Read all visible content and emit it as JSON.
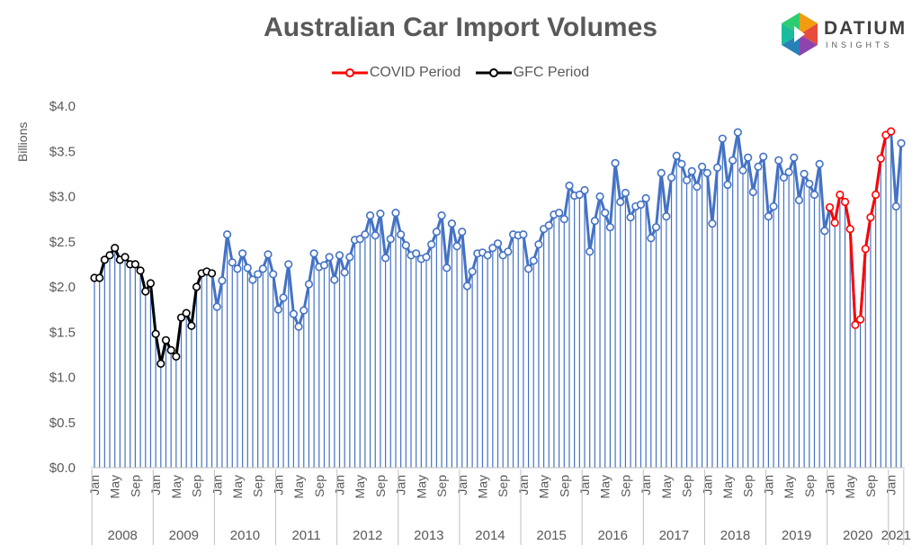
{
  "title": "Australian Car Import Volumes",
  "logo": {
    "name": "DATIUM",
    "sub": "INSIGHTS"
  },
  "legend": [
    {
      "label": "COVID Period",
      "color": "#ff0000"
    },
    {
      "label": "GFC Period",
      "color": "#000000"
    }
  ],
  "chart_data": {
    "type": "line",
    "title": "Australian Car Import Volumes",
    "ylabel": "Billions",
    "ylim": [
      0,
      4
    ],
    "yticks": [
      "$0.0",
      "$0.5",
      "$1.0",
      "$1.5",
      "$2.0",
      "$2.5",
      "$3.0",
      "$3.5",
      "$4.0"
    ],
    "month_tick_labels": [
      "Jan",
      "May",
      "Sep"
    ],
    "year_labels": [
      "2008",
      "2009",
      "2010",
      "2011",
      "2012",
      "2013",
      "2014",
      "2015",
      "2016",
      "2017",
      "2018",
      "2019",
      "2020",
      "2021"
    ],
    "start": "2008-01",
    "end": "2021-01",
    "colors": {
      "main": "#4472c4",
      "gfc": "#000000",
      "covid": "#ff0000"
    },
    "series": [
      {
        "name": "GFC Period",
        "from": "2008-01",
        "to": "2009-12"
      },
      {
        "name": "COVID Period",
        "from": "2020-01",
        "to": "2021-01"
      }
    ],
    "values": [
      2.1,
      2.1,
      2.3,
      2.35,
      2.43,
      2.3,
      2.33,
      2.25,
      2.25,
      2.18,
      1.95,
      2.04,
      1.48,
      1.15,
      1.41,
      1.3,
      1.23,
      1.66,
      1.71,
      1.57,
      2.0,
      2.15,
      2.17,
      2.15,
      1.78,
      2.07,
      2.58,
      2.27,
      2.2,
      2.37,
      2.21,
      2.08,
      2.14,
      2.2,
      2.36,
      2.14,
      1.75,
      1.88,
      2.25,
      1.7,
      1.56,
      1.74,
      2.03,
      2.37,
      2.22,
      2.24,
      2.33,
      2.08,
      2.35,
      2.16,
      2.33,
      2.52,
      2.53,
      2.58,
      2.79,
      2.57,
      2.81,
      2.32,
      2.53,
      2.82,
      2.58,
      2.46,
      2.35,
      2.37,
      2.31,
      2.33,
      2.47,
      2.61,
      2.79,
      2.21,
      2.7,
      2.45,
      2.61,
      2.01,
      2.17,
      2.37,
      2.38,
      2.35,
      2.43,
      2.48,
      2.35,
      2.39,
      2.58,
      2.57,
      2.58,
      2.2,
      2.29,
      2.47,
      2.64,
      2.68,
      2.8,
      2.82,
      2.75,
      3.12,
      3.01,
      3.02,
      3.07,
      2.39,
      2.73,
      3.0,
      2.82,
      2.66,
      3.37,
      2.94,
      3.04,
      2.77,
      2.89,
      2.91,
      2.98,
      2.54,
      2.66,
      3.26,
      2.78,
      3.21,
      3.45,
      3.36,
      3.18,
      3.28,
      3.11,
      3.33,
      3.26,
      2.7,
      3.32,
      3.64,
      3.13,
      3.4,
      3.71,
      3.29,
      3.43,
      3.05,
      3.33,
      3.44,
      2.78,
      2.89,
      3.4,
      3.21,
      3.27,
      3.43,
      2.96,
      3.25,
      3.14,
      3.02,
      3.36,
      2.62,
      2.88,
      2.71,
      3.02,
      2.94,
      2.64,
      1.58,
      1.64,
      2.42,
      2.77,
      3.02,
      3.42,
      3.68,
      3.72,
      2.89,
      3.59
    ]
  }
}
